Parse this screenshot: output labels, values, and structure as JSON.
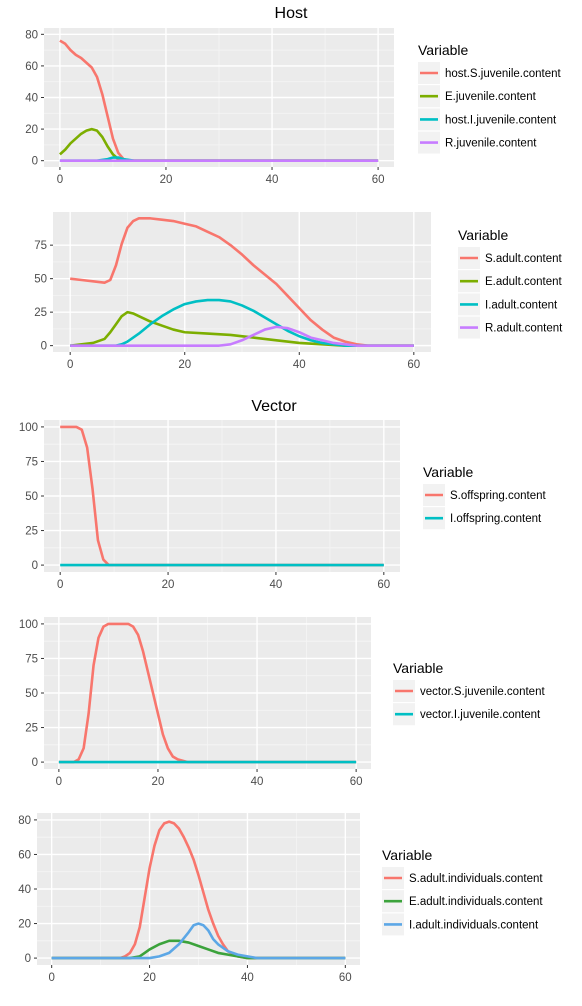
{
  "sections": [
    {
      "title": "Host"
    },
    {
      "title": "Vector"
    }
  ],
  "chart_data": [
    {
      "type": "line",
      "title": "Host",
      "xlim": [
        0,
        60
      ],
      "ylim": [
        0,
        80
      ],
      "x_ticks": [
        0,
        20,
        40,
        60
      ],
      "y_ticks": [
        0,
        20,
        40,
        60,
        80
      ],
      "grid": true,
      "legend_title": "Variable",
      "legend_position": "right",
      "series": [
        {
          "name": "host.S.juvenile.content",
          "color": "#F8766D",
          "points": [
            [
              0,
              76
            ],
            [
              1,
              74
            ],
            [
              2,
              70
            ],
            [
              3,
              67
            ],
            [
              4,
              65
            ],
            [
              5,
              62
            ],
            [
              6,
              59
            ],
            [
              7,
              53
            ],
            [
              8,
              42
            ],
            [
              9,
              28
            ],
            [
              10,
              14
            ],
            [
              11,
              5
            ],
            [
              12,
              1
            ],
            [
              13,
              0
            ],
            [
              60,
              0
            ]
          ]
        },
        {
          "name": "E.juvenile.content",
          "color": "#7CAE00",
          "points": [
            [
              0,
              4
            ],
            [
              1,
              7
            ],
            [
              2,
              11
            ],
            [
              3,
              14
            ],
            [
              4,
              17
            ],
            [
              5,
              19
            ],
            [
              6,
              20
            ],
            [
              7,
              19
            ],
            [
              8,
              15
            ],
            [
              9,
              9
            ],
            [
              10,
              4
            ],
            [
              11,
              1
            ],
            [
              12,
              0
            ],
            [
              60,
              0
            ]
          ]
        },
        {
          "name": "host.I.juvenile.content",
          "color": "#00BFC4",
          "points": [
            [
              0,
              0
            ],
            [
              7,
              0
            ],
            [
              8,
              0.5
            ],
            [
              9,
              1
            ],
            [
              10,
              2
            ],
            [
              11,
              2
            ],
            [
              12,
              1
            ],
            [
              13,
              0.5
            ],
            [
              14,
              0
            ],
            [
              60,
              0
            ]
          ]
        },
        {
          "name": "R.juvenile.content",
          "color": "#C77CFF",
          "points": [
            [
              0,
              0
            ],
            [
              60,
              0
            ]
          ]
        }
      ]
    },
    {
      "type": "line",
      "title": "",
      "xlim": [
        0,
        60
      ],
      "ylim": [
        0,
        95
      ],
      "x_ticks": [
        0,
        20,
        40,
        60
      ],
      "y_ticks": [
        0,
        25,
        50,
        75
      ],
      "grid": true,
      "legend_title": "Variable",
      "legend_position": "right",
      "series": [
        {
          "name": "S.adult.content",
          "color": "#F8766D",
          "points": [
            [
              0,
              50
            ],
            [
              2,
              49
            ],
            [
              4,
              48
            ],
            [
              6,
              47
            ],
            [
              7,
              49
            ],
            [
              8,
              60
            ],
            [
              9,
              76
            ],
            [
              10,
              88
            ],
            [
              11,
              93
            ],
            [
              12,
              95
            ],
            [
              14,
              95
            ],
            [
              16,
              94
            ],
            [
              18,
              93
            ],
            [
              20,
              91
            ],
            [
              22,
              89
            ],
            [
              24,
              85
            ],
            [
              26,
              81
            ],
            [
              28,
              75
            ],
            [
              30,
              68
            ],
            [
              32,
              60
            ],
            [
              34,
              53
            ],
            [
              36,
              46
            ],
            [
              38,
              37
            ],
            [
              40,
              28
            ],
            [
              42,
              19
            ],
            [
              44,
              12
            ],
            [
              46,
              6
            ],
            [
              48,
              3
            ],
            [
              50,
              1
            ],
            [
              52,
              0
            ],
            [
              60,
              0
            ]
          ]
        },
        {
          "name": "E.adult.content",
          "color": "#7CAE00",
          "points": [
            [
              0,
              0
            ],
            [
              2,
              1
            ],
            [
              4,
              2
            ],
            [
              6,
              5
            ],
            [
              7,
              10
            ],
            [
              8,
              16
            ],
            [
              9,
              22
            ],
            [
              10,
              25
            ],
            [
              11,
              24
            ],
            [
              12,
              22
            ],
            [
              14,
              18
            ],
            [
              16,
              15
            ],
            [
              18,
              12
            ],
            [
              20,
              10
            ],
            [
              24,
              9
            ],
            [
              28,
              8
            ],
            [
              32,
              6
            ],
            [
              36,
              4
            ],
            [
              40,
              2
            ],
            [
              44,
              1
            ],
            [
              48,
              0
            ],
            [
              60,
              0
            ]
          ]
        },
        {
          "name": "I.adult.content",
          "color": "#00BFC4",
          "points": [
            [
              0,
              0
            ],
            [
              8,
              0
            ],
            [
              9,
              1
            ],
            [
              10,
              3
            ],
            [
              12,
              9
            ],
            [
              14,
              16
            ],
            [
              16,
              22
            ],
            [
              18,
              27
            ],
            [
              20,
              31
            ],
            [
              22,
              33
            ],
            [
              24,
              34
            ],
            [
              26,
              34
            ],
            [
              28,
              33
            ],
            [
              30,
              30
            ],
            [
              32,
              26
            ],
            [
              34,
              21
            ],
            [
              36,
              16
            ],
            [
              38,
              11
            ],
            [
              40,
              7
            ],
            [
              42,
              4
            ],
            [
              44,
              2
            ],
            [
              46,
              1
            ],
            [
              48,
              0
            ],
            [
              60,
              0
            ]
          ]
        },
        {
          "name": "R.adult.content",
          "color": "#C77CFF",
          "points": [
            [
              0,
              0
            ],
            [
              26,
              0
            ],
            [
              28,
              1
            ],
            [
              30,
              4
            ],
            [
              32,
              8
            ],
            [
              34,
              12
            ],
            [
              36,
              14
            ],
            [
              38,
              13
            ],
            [
              40,
              10
            ],
            [
              42,
              6
            ],
            [
              44,
              4
            ],
            [
              46,
              2
            ],
            [
              48,
              1
            ],
            [
              50,
              0
            ],
            [
              60,
              0
            ]
          ]
        }
      ]
    },
    {
      "type": "line",
      "title": "Vector",
      "xlim": [
        0,
        60
      ],
      "ylim": [
        0,
        100
      ],
      "x_ticks": [
        0,
        20,
        40,
        60
      ],
      "y_ticks": [
        0,
        25,
        50,
        75,
        100
      ],
      "grid": true,
      "legend_title": "Variable",
      "legend_position": "right",
      "series": [
        {
          "name": "S.offspring.content",
          "color": "#F8766D",
          "points": [
            [
              0,
              100
            ],
            [
              3,
              100
            ],
            [
              4,
              98
            ],
            [
              5,
              85
            ],
            [
              6,
              55
            ],
            [
              7,
              18
            ],
            [
              8,
              4
            ],
            [
              9,
              0
            ],
            [
              60,
              0
            ]
          ]
        },
        {
          "name": "I.offspring.content",
          "color": "#00BFC4",
          "points": [
            [
              0,
              0
            ],
            [
              60,
              0
            ]
          ]
        }
      ]
    },
    {
      "type": "line",
      "title": "",
      "xlim": [
        0,
        60
      ],
      "ylim": [
        0,
        100
      ],
      "x_ticks": [
        0,
        20,
        40,
        60
      ],
      "y_ticks": [
        0,
        25,
        50,
        75,
        100
      ],
      "grid": true,
      "legend_title": "Variable",
      "legend_position": "right",
      "series": [
        {
          "name": "vector.S.juvenile.content",
          "color": "#F8766D",
          "points": [
            [
              0,
              0
            ],
            [
              3,
              0
            ],
            [
              4,
              2
            ],
            [
              5,
              10
            ],
            [
              6,
              35
            ],
            [
              7,
              70
            ],
            [
              8,
              90
            ],
            [
              9,
              98
            ],
            [
              10,
              100
            ],
            [
              14,
              100
            ],
            [
              15,
              98
            ],
            [
              16,
              92
            ],
            [
              17,
              80
            ],
            [
              18,
              65
            ],
            [
              19,
              50
            ],
            [
              20,
              35
            ],
            [
              21,
              20
            ],
            [
              22,
              10
            ],
            [
              23,
              4
            ],
            [
              24,
              2
            ],
            [
              25,
              1
            ],
            [
              26,
              0
            ],
            [
              60,
              0
            ]
          ]
        },
        {
          "name": "vector.I.juvenile.content",
          "color": "#00BFC4",
          "points": [
            [
              0,
              0
            ],
            [
              60,
              0
            ]
          ]
        }
      ]
    },
    {
      "type": "line",
      "title": "",
      "xlim": [
        0,
        60
      ],
      "ylim": [
        0,
        80
      ],
      "x_ticks": [
        0,
        20,
        40,
        60
      ],
      "y_ticks": [
        0,
        20,
        40,
        60,
        80
      ],
      "grid": true,
      "legend_title": "Variable",
      "legend_position": "right",
      "series": [
        {
          "name": "S.adult.individuals.content",
          "color": "#F8766D",
          "points": [
            [
              0,
              0
            ],
            [
              14,
              0
            ],
            [
              15,
              1
            ],
            [
              16,
              3
            ],
            [
              17,
              8
            ],
            [
              18,
              18
            ],
            [
              19,
              35
            ],
            [
              20,
              52
            ],
            [
              21,
              65
            ],
            [
              22,
              74
            ],
            [
              23,
              78
            ],
            [
              24,
              79
            ],
            [
              25,
              78
            ],
            [
              26,
              75
            ],
            [
              27,
              70
            ],
            [
              28,
              64
            ],
            [
              29,
              57
            ],
            [
              30,
              48
            ],
            [
              31,
              38
            ],
            [
              32,
              28
            ],
            [
              33,
              20
            ],
            [
              34,
              13
            ],
            [
              35,
              8
            ],
            [
              36,
              4
            ],
            [
              38,
              1
            ],
            [
              40,
              0
            ],
            [
              60,
              0
            ]
          ]
        },
        {
          "name": "E.adult.individuals.content",
          "color": "#3CA33C",
          "points": [
            [
              0,
              0
            ],
            [
              16,
              0
            ],
            [
              18,
              1
            ],
            [
              19,
              3
            ],
            [
              20,
              5
            ],
            [
              22,
              8
            ],
            [
              24,
              10
            ],
            [
              26,
              10
            ],
            [
              28,
              9
            ],
            [
              30,
              7
            ],
            [
              32,
              5
            ],
            [
              34,
              3
            ],
            [
              36,
              2
            ],
            [
              38,
              1
            ],
            [
              40,
              0
            ],
            [
              60,
              0
            ]
          ]
        },
        {
          "name": "I.adult.individuals.content",
          "color": "#5CA7E6",
          "points": [
            [
              0,
              0
            ],
            [
              20,
              0
            ],
            [
              22,
              1
            ],
            [
              24,
              3
            ],
            [
              26,
              8
            ],
            [
              28,
              15
            ],
            [
              29,
              19
            ],
            [
              30,
              20
            ],
            [
              31,
              19
            ],
            [
              32,
              16
            ],
            [
              33,
              11
            ],
            [
              34,
              8
            ],
            [
              36,
              4
            ],
            [
              38,
              2
            ],
            [
              40,
              1
            ],
            [
              42,
              0
            ],
            [
              60,
              0
            ]
          ]
        }
      ]
    }
  ]
}
